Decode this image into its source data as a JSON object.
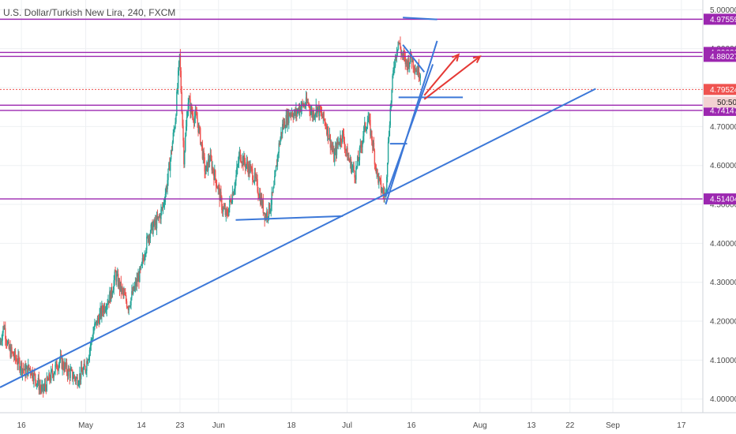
{
  "header": {
    "title": "U.S. Dollar/Turkish New Lira, 240, FXCM"
  },
  "chart_data": {
    "type": "candlestick",
    "ylim": [
      3.965,
      5.025
    ],
    "y_ticks": [
      4.0,
      4.1,
      4.2,
      4.3,
      4.4,
      4.5,
      4.6,
      4.7,
      4.8,
      4.9,
      5.0
    ],
    "y_tick_labels": [
      "4.00000",
      "4.10000",
      "4.20000",
      "4.30000",
      "4.40000",
      "4.50000",
      "4.60000",
      "4.70000",
      "4.80000",
      "4.90000",
      "5.00000"
    ],
    "x_start": "2018-04-11",
    "x_end": "2018-09-22",
    "x_ticks": [
      {
        "date": "2018-04-16",
        "label": "16"
      },
      {
        "date": "2018-05-01",
        "label": "May"
      },
      {
        "date": "2018-05-14",
        "label": "14"
      },
      {
        "date": "2018-05-23",
        "label": "23"
      },
      {
        "date": "2018-06-01",
        "label": "Jun"
      },
      {
        "date": "2018-06-18",
        "label": "18"
      },
      {
        "date": "2018-07-01",
        "label": "Jul"
      },
      {
        "date": "2018-07-16",
        "label": "16"
      },
      {
        "date": "2018-08-01",
        "label": "Aug"
      },
      {
        "date": "2018-08-13",
        "label": "13"
      },
      {
        "date": "2018-08-22",
        "label": "22"
      },
      {
        "date": "2018-09-01",
        "label": "Sep"
      },
      {
        "date": "2018-09-17",
        "label": "17"
      }
    ],
    "price_path": [
      [
        "2018-04-11",
        4.14
      ],
      [
        "2018-04-12",
        4.19
      ],
      [
        "2018-04-13",
        4.13
      ],
      [
        "2018-04-15",
        4.1
      ],
      [
        "2018-04-17",
        4.07
      ],
      [
        "2018-04-18",
        4.08
      ],
      [
        "2018-04-20",
        4.04
      ],
      [
        "2018-04-21",
        4.02
      ],
      [
        "2018-04-23",
        4.06
      ],
      [
        "2018-04-25",
        4.1
      ],
      [
        "2018-04-27",
        4.07
      ],
      [
        "2018-04-29",
        4.05
      ],
      [
        "2018-05-01",
        4.08
      ],
      [
        "2018-05-02",
        4.13
      ],
      [
        "2018-05-03",
        4.18
      ],
      [
        "2018-05-05",
        4.23
      ],
      [
        "2018-05-07",
        4.27
      ],
      [
        "2018-05-08",
        4.32
      ],
      [
        "2018-05-09",
        4.29
      ],
      [
        "2018-05-11",
        4.24
      ],
      [
        "2018-05-12",
        4.27
      ],
      [
        "2018-05-14",
        4.33
      ],
      [
        "2018-05-15",
        4.39
      ],
      [
        "2018-05-16",
        4.43
      ],
      [
        "2018-05-18",
        4.46
      ],
      [
        "2018-05-19",
        4.49
      ],
      [
        "2018-05-20",
        4.55
      ],
      [
        "2018-05-21",
        4.63
      ],
      [
        "2018-05-22",
        4.72
      ],
      [
        "2018-05-23",
        4.88
      ],
      [
        "2018-05-24",
        4.62
      ],
      [
        "2018-05-25",
        4.77
      ],
      [
        "2018-05-26",
        4.73
      ],
      [
        "2018-05-27",
        4.72
      ],
      [
        "2018-05-28",
        4.66
      ],
      [
        "2018-05-29",
        4.58
      ],
      [
        "2018-05-30",
        4.62
      ],
      [
        "2018-06-01",
        4.54
      ],
      [
        "2018-06-02",
        4.49
      ],
      [
        "2018-06-03",
        4.47
      ],
      [
        "2018-06-05",
        4.56
      ],
      [
        "2018-06-06",
        4.63
      ],
      [
        "2018-06-07",
        4.61
      ],
      [
        "2018-06-09",
        4.58
      ],
      [
        "2018-06-10",
        4.55
      ],
      [
        "2018-06-11",
        4.51
      ],
      [
        "2018-06-12",
        4.47
      ],
      [
        "2018-06-13",
        4.49
      ],
      [
        "2018-06-14",
        4.54
      ],
      [
        "2018-06-15",
        4.64
      ],
      [
        "2018-06-16",
        4.7
      ],
      [
        "2018-06-18",
        4.74
      ],
      [
        "2018-06-19",
        4.73
      ],
      [
        "2018-06-20",
        4.75
      ],
      [
        "2018-06-22",
        4.76
      ],
      [
        "2018-06-23",
        4.73
      ],
      [
        "2018-06-24",
        4.75
      ],
      [
        "2018-06-26",
        4.71
      ],
      [
        "2018-06-27",
        4.67
      ],
      [
        "2018-06-28",
        4.62
      ],
      [
        "2018-06-29",
        4.66
      ],
      [
        "2018-06-30",
        4.68
      ],
      [
        "2018-07-01",
        4.63
      ],
      [
        "2018-07-02",
        4.6
      ],
      [
        "2018-07-03",
        4.58
      ],
      [
        "2018-07-04",
        4.63
      ],
      [
        "2018-07-05",
        4.69
      ],
      [
        "2018-07-06",
        4.72
      ],
      [
        "2018-07-07",
        4.66
      ],
      [
        "2018-07-08",
        4.58
      ],
      [
        "2018-07-09",
        4.54
      ],
      [
        "2018-07-10",
        4.52
      ],
      [
        "2018-07-11",
        4.72
      ],
      [
        "2018-07-12",
        4.86
      ],
      [
        "2018-07-13",
        4.92
      ],
      [
        "2018-07-14",
        4.88
      ],
      [
        "2018-07-15",
        4.86
      ],
      [
        "2018-07-16",
        4.88
      ],
      [
        "2018-07-17",
        4.85
      ],
      [
        "2018-07-18",
        4.84
      ]
    ],
    "price_lines": [
      {
        "price": 4.97559,
        "label": "4.97559"
      },
      {
        "price": 4.8903,
        "label": "4.89030"
      },
      {
        "price": 4.88027,
        "label": "4.88027"
      },
      {
        "price": 4.75485,
        "label": "4.75485"
      },
      {
        "price": 4.74147,
        "label": "4.74147"
      },
      {
        "price": 4.51404,
        "label": "4.51404"
      }
    ],
    "current_price": {
      "price": 4.79524,
      "label": "4.79524",
      "countdown": "50:50"
    },
    "trend_lines": [
      {
        "from": [
          "2018-04-11",
          4.03
        ],
        "to": [
          "2018-08-28",
          4.797
        ]
      },
      {
        "from": [
          "2018-07-10",
          4.5
        ],
        "to": [
          "2018-07-22",
          4.92
        ]
      },
      {
        "from": [
          "2018-07-10",
          4.52
        ],
        "to": [
          "2018-07-21",
          4.86
        ]
      },
      {
        "from": [
          "2018-06-05",
          4.46
        ],
        "to": [
          "2018-06-30",
          4.47
        ]
      },
      {
        "from": [
          "2018-07-11",
          4.656
        ],
        "to": [
          "2018-07-15",
          4.656
        ]
      },
      {
        "from": [
          "2018-07-13",
          4.775
        ],
        "to": [
          "2018-07-28",
          4.775
        ]
      },
      {
        "from": [
          "2018-07-14",
          4.98
        ],
        "to": [
          "2018-07-22",
          4.975
        ]
      },
      {
        "from": [
          "2018-07-14",
          4.91
        ],
        "to": [
          "2018-07-19",
          4.84
        ]
      }
    ],
    "arrows": [
      {
        "from": [
          "2018-07-19",
          4.78
        ],
        "to": [
          "2018-07-27",
          4.885
        ]
      },
      {
        "from": [
          "2018-07-19",
          4.77
        ],
        "to": [
          "2018-08-01",
          4.88
        ]
      }
    ],
    "colors": {
      "up": "#26a69a",
      "down": "#ef5350",
      "purple": "#9c27b0",
      "trend": "#3c78d8",
      "arrow": "#e53935",
      "grid": "#eef0f3",
      "text": "#4a4a4a"
    }
  }
}
